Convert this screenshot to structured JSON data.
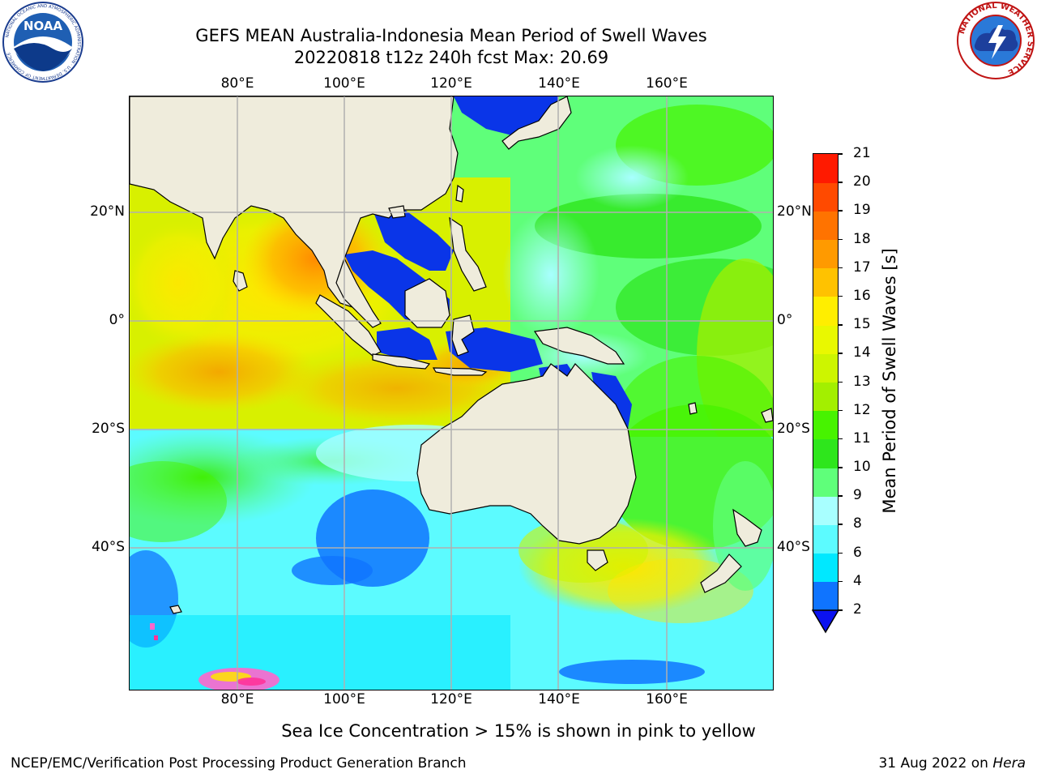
{
  "header": {
    "title_line1": "GEFS MEAN Australia-Indonesia Mean Period of Swell Waves",
    "title_line2": "20220818 t12z 240h fcst   Max: 20.69"
  },
  "logos": {
    "noaa_text": "NOAA",
    "noaa_ring": "NATIONAL OCEANIC AND ATMOSPHERIC ADMINISTRATION · U.S. DEPARTMENT OF COMMERCE",
    "nws_ring": "NATIONAL WEATHER SERVICE"
  },
  "map": {
    "lon_labels": [
      "80°E",
      "100°E",
      "120°E",
      "140°E",
      "160°E"
    ],
    "lat_labels": [
      "20°N",
      "0°",
      "20°S",
      "40°S"
    ],
    "gridlines": true,
    "land_color": "#efecdc",
    "deep_ocean_color": "#0a35e8"
  },
  "colorbar": {
    "label": "Mean Period of Swell Waves [s]",
    "tick_labels": [
      "2",
      "4",
      "6",
      "8",
      "9",
      "10",
      "11",
      "12",
      "13",
      "14",
      "15",
      "16",
      "17",
      "18",
      "19",
      "20",
      "21"
    ],
    "colors": [
      "#0f74ff",
      "#00e8ff",
      "#5cfbff",
      "#a8ffff",
      "#5fff7a",
      "#2ee61c",
      "#47f300",
      "#a3ef00",
      "#cdf500",
      "#e9f800",
      "#ffee00",
      "#ffc200",
      "#ff9a00",
      "#ff7300",
      "#ff4a00",
      "#ff1a00"
    ],
    "extend_min_color": "#0b12f0"
  },
  "footer": {
    "sea_ice_note": "Sea Ice Concentration > 15% is shown in pink to yellow",
    "left": "NCEP/EMC/Verification Post Processing Product Generation Branch",
    "right_date": "31 Aug 2022 on",
    "right_host": "Hera"
  }
}
